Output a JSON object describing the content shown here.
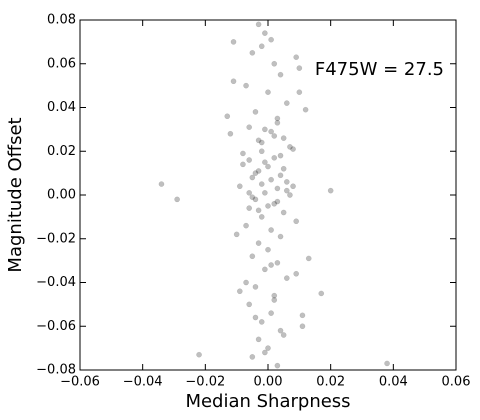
{
  "chart_data": {
    "type": "scatter",
    "annotation": "F475W = 27.5",
    "x_label": "Median Sharpness",
    "y_label": "Magnitude Offset",
    "color": "#000000",
    "opacity": 0.25,
    "xlim": [
      -0.06,
      0.06
    ],
    "ylim": [
      -0.08,
      0.08
    ],
    "xticks": [
      {
        "value": -0.06,
        "label": "−0.06"
      },
      {
        "value": -0.04,
        "label": "−0.04"
      },
      {
        "value": -0.02,
        "label": "−0.02"
      },
      {
        "value": 0,
        "label": "0.00"
      },
      0.02,
      0.04,
      0.06
    ],
    "yticks": [
      {
        "value": -0.08,
        "label": "−0.08"
      },
      {
        "value": -0.06,
        "label": "−0.06"
      },
      {
        "value": -0.04,
        "label": "−0.04"
      },
      {
        "value": -0.02,
        "label": "−0.02"
      },
      {
        "value": 0,
        "label": "0.00"
      },
      0.02,
      0.04,
      0.06,
      0.08
    ],
    "x": [
      -0.003,
      0.001,
      -0.005,
      0.002,
      -0.001,
      0.004,
      -0.007,
      0.0,
      -0.002,
      0.006,
      -0.004,
      0.003,
      -0.006,
      0.001,
      0.005,
      -0.002,
      0.008,
      -0.008,
      0.002,
      -0.001,
      0.0,
      -0.003,
      0.004,
      -0.005,
      0.006,
      -0.009,
      0.003,
      -0.001,
      0.007,
      -0.004,
      0.002,
      -0.006,
      0.005,
      -0.002,
      0.009,
      -0.007,
      0.001,
      0.004,
      -0.003,
      0.0,
      -0.005,
      0.003,
      -0.001,
      0.006,
      -0.004,
      0.002,
      -0.006,
      0.001,
      -0.002,
      0.004,
      -0.003,
      0.0,
      -0.005,
      0.003,
      -0.001,
      0.005,
      -0.004,
      0.002,
      -0.007,
      0.001,
      -0.002,
      0.004,
      -0.006,
      0.007,
      -0.003,
      0.002,
      -0.008,
      0.005,
      -0.001,
      0.003,
      -0.004,
      0.001,
      -0.002,
      0.006,
      -0.005,
      0.003,
      0.0,
      -0.003,
      0.008,
      -0.006,
      -0.034,
      -0.029,
      0.02,
      0.013,
      0.017,
      0.038,
      -0.022,
      0.009,
      0.011,
      -0.013,
      0.01,
      -0.011,
      0.012,
      -0.01,
      0.009,
      -0.012,
      0.011,
      -0.009,
      0.01,
      -0.011
    ],
    "values": [
      0.078,
      0.071,
      0.065,
      0.06,
      0.074,
      0.055,
      0.05,
      0.047,
      0.068,
      0.042,
      0.038,
      0.035,
      0.031,
      0.029,
      0.026,
      0.024,
      0.021,
      0.019,
      0.017,
      0.015,
      0.013,
      0.011,
      0.009,
      0.008,
      0.006,
      0.004,
      0.003,
      0.001,
      0.0,
      -0.002,
      -0.004,
      -0.006,
      -0.008,
      -0.01,
      -0.012,
      -0.014,
      -0.016,
      -0.019,
      -0.022,
      -0.025,
      -0.028,
      -0.031,
      -0.034,
      -0.038,
      -0.042,
      -0.046,
      -0.05,
      -0.054,
      -0.058,
      -0.062,
      -0.066,
      -0.07,
      -0.074,
      -0.078,
      -0.072,
      -0.064,
      -0.056,
      -0.048,
      -0.04,
      -0.032,
      0.02,
      0.018,
      0.016,
      0.022,
      0.025,
      0.027,
      0.014,
      0.012,
      0.03,
      0.033,
      0.01,
      0.007,
      0.005,
      0.002,
      -0.001,
      -0.003,
      -0.005,
      -0.007,
      0.004,
      0.001,
      0.005,
      -0.002,
      0.002,
      -0.029,
      -0.045,
      -0.077,
      -0.073,
      0.063,
      -0.055,
      0.036,
      0.058,
      0.052,
      0.039,
      -0.018,
      -0.036,
      0.028,
      -0.06,
      -0.044,
      0.047,
      0.07
    ]
  }
}
